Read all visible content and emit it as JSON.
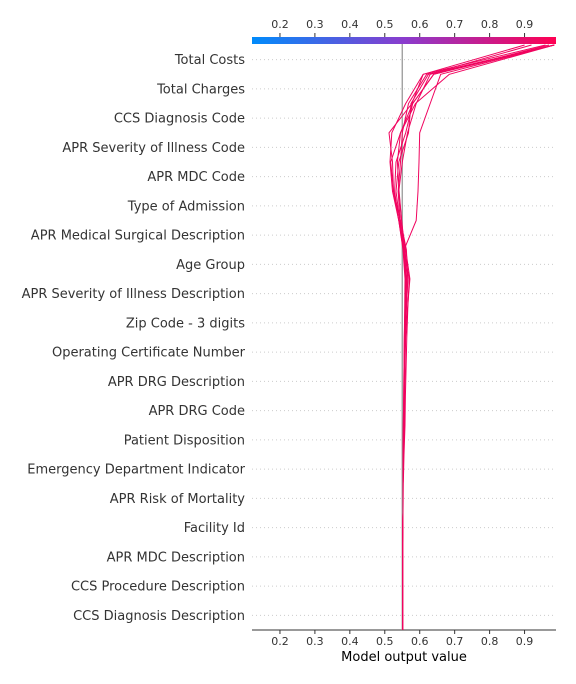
{
  "chart_data": {
    "type": "line",
    "title": "",
    "xlabel": "Model output value",
    "ylabel": "",
    "xlim": [
      0.12,
      0.99
    ],
    "xticks": [
      0.2,
      0.3,
      0.4,
      0.5,
      0.6,
      0.7,
      0.8,
      0.9
    ],
    "base_value": 0.55,
    "grid": "horizontal dotted",
    "colorbar": {
      "from": "#008bfb",
      "to": "#ff0052"
    },
    "features": [
      "Total Costs",
      "Total Charges",
      "CCS Diagnosis Code",
      "APR Severity of Illness Code",
      "APR MDC Code",
      "Type of Admission",
      "APR Medical Surgical Description",
      "Age Group",
      "APR Severity of Illness Description",
      "Zip Code - 3 digits",
      "Operating Certificate Number",
      "APR DRG Description",
      "APR DRG Code",
      "Patient Disposition",
      "Emergency Department Indicator",
      "APR Risk of Mortality",
      "Facility Id",
      "APR MDC Description",
      "CCS Procedure Description",
      "CCS Diagnosis Description"
    ],
    "series_note": "Each series lists model output at boundaries from bottom (base) to top (final prediction).",
    "series": [
      {
        "values": [
          0.551,
          0.551,
          0.551,
          0.551,
          0.552,
          0.552,
          0.553,
          0.556,
          0.556,
          0.557,
          0.558,
          0.562,
          0.566,
          0.562,
          0.545,
          0.525,
          0.517,
          0.545,
          0.588,
          0.685,
          0.985
        ]
      },
      {
        "values": [
          0.551,
          0.551,
          0.551,
          0.551,
          0.552,
          0.553,
          0.555,
          0.558,
          0.559,
          0.561,
          0.563,
          0.566,
          0.57,
          0.555,
          0.59,
          0.595,
          0.598,
          0.6,
          0.63,
          0.66,
          0.985
        ]
      },
      {
        "values": [
          0.551,
          0.551,
          0.551,
          0.551,
          0.552,
          0.552,
          0.553,
          0.556,
          0.557,
          0.558,
          0.56,
          0.565,
          0.572,
          0.56,
          0.54,
          0.528,
          0.532,
          0.56,
          0.58,
          0.64,
          0.97
        ]
      },
      {
        "values": [
          0.551,
          0.551,
          0.551,
          0.551,
          0.552,
          0.552,
          0.553,
          0.556,
          0.556,
          0.557,
          0.558,
          0.562,
          0.566,
          0.558,
          0.548,
          0.54,
          0.55,
          0.565,
          0.59,
          0.63,
          0.985
        ]
      },
      {
        "values": [
          0.551,
          0.551,
          0.551,
          0.551,
          0.552,
          0.552,
          0.553,
          0.555,
          0.556,
          0.557,
          0.558,
          0.56,
          0.563,
          0.556,
          0.543,
          0.532,
          0.54,
          0.568,
          0.575,
          0.625,
          0.92
        ]
      },
      {
        "values": [
          0.551,
          0.551,
          0.551,
          0.551,
          0.552,
          0.552,
          0.553,
          0.554,
          0.555,
          0.556,
          0.557,
          0.559,
          0.561,
          0.553,
          0.544,
          0.538,
          0.545,
          0.55,
          0.568,
          0.62,
          0.985
        ]
      },
      {
        "values": [
          0.551,
          0.551,
          0.551,
          0.551,
          0.552,
          0.552,
          0.552,
          0.553,
          0.554,
          0.555,
          0.556,
          0.558,
          0.56,
          0.553,
          0.54,
          0.522,
          0.515,
          0.52,
          0.56,
          0.61,
          0.9
        ]
      },
      {
        "values": [
          0.551,
          0.551,
          0.551,
          0.551,
          0.552,
          0.552,
          0.552,
          0.553,
          0.554,
          0.555,
          0.556,
          0.557,
          0.558,
          0.552,
          0.54,
          0.525,
          0.522,
          0.512,
          0.578,
          0.61,
          0.96
        ]
      },
      {
        "values": [
          0.551,
          0.551,
          0.551,
          0.551,
          0.552,
          0.552,
          0.553,
          0.554,
          0.555,
          0.556,
          0.557,
          0.559,
          0.562,
          0.555,
          0.548,
          0.541,
          0.536,
          0.545,
          0.58,
          0.64,
          0.985
        ]
      }
    ]
  }
}
